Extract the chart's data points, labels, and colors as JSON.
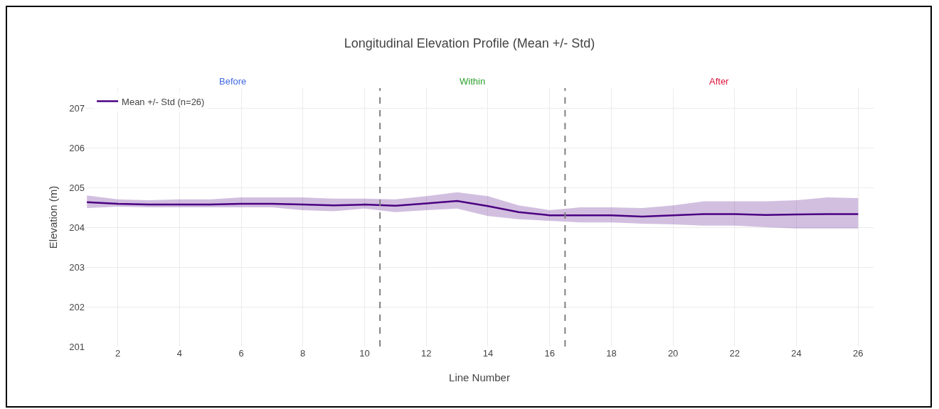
{
  "chart_data": {
    "type": "line",
    "title": "Longitudinal Elevation Profile (Mean +/- Std)",
    "xlabel": "Line Number",
    "ylabel": "Elevation (m)",
    "x": [
      1,
      2,
      3,
      4,
      5,
      6,
      7,
      8,
      9,
      10,
      11,
      12,
      13,
      14,
      15,
      16,
      17,
      18,
      19,
      20,
      21,
      22,
      23,
      24,
      25,
      26
    ],
    "series": [
      {
        "name": "Mean +/- Std (n=26)",
        "color": "#4b0082",
        "values": [
          204.63,
          204.59,
          204.57,
          204.57,
          204.57,
          204.59,
          204.59,
          204.57,
          204.55,
          204.57,
          204.54,
          204.6,
          204.66,
          204.53,
          204.38,
          204.3,
          204.3,
          204.3,
          204.27,
          204.3,
          204.33,
          204.33,
          204.31,
          204.32,
          204.33,
          204.33
        ],
        "lower": [
          204.48,
          204.52,
          204.5,
          204.5,
          204.5,
          204.5,
          204.5,
          204.43,
          204.4,
          204.47,
          204.38,
          204.43,
          204.47,
          204.28,
          204.2,
          204.16,
          204.12,
          204.12,
          204.09,
          204.07,
          204.04,
          204.04,
          204.0,
          203.97,
          203.97,
          203.97
        ],
        "upper": [
          204.8,
          204.7,
          204.68,
          204.7,
          204.7,
          204.75,
          204.75,
          204.75,
          204.72,
          204.72,
          204.7,
          204.78,
          204.88,
          204.78,
          204.55,
          204.43,
          204.5,
          204.5,
          204.48,
          204.55,
          204.65,
          204.65,
          204.65,
          204.68,
          204.75,
          204.73
        ]
      }
    ],
    "xlim": [
      0.95,
      26.5
    ],
    "xticks": [
      2,
      4,
      6,
      8,
      10,
      12,
      14,
      16,
      18,
      20,
      22,
      24,
      26
    ],
    "ylim": [
      201,
      207.5
    ],
    "yticks": [
      201,
      202,
      203,
      204,
      205,
      206,
      207
    ],
    "ref_lines": [
      {
        "axis": "x",
        "value": 10.5,
        "color": "#808080",
        "line_style": "dashed"
      },
      {
        "axis": "x",
        "value": 16.5,
        "color": "#808080",
        "line_style": "dashed"
      }
    ],
    "annotations": [
      "Before",
      "Within",
      "After"
    ],
    "grid": true,
    "legend": "top left",
    "line_style": "solid",
    "marker": "none"
  }
}
